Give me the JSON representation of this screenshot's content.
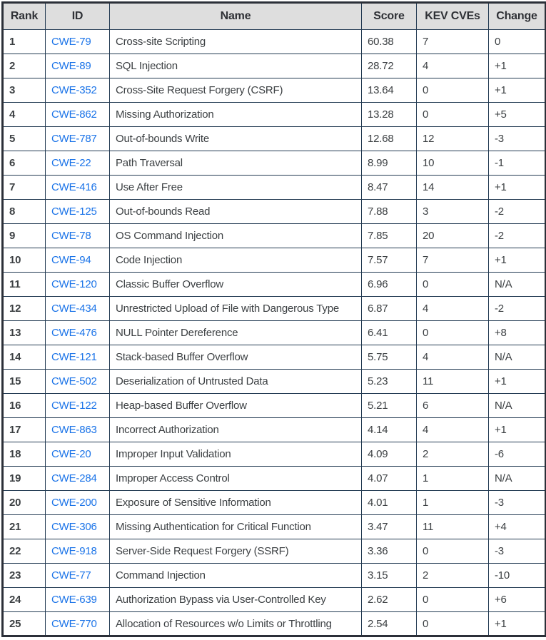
{
  "colors": {
    "link_blue": "#1a73e8",
    "header_background": "#dedede",
    "border_inner": "#223a52",
    "border_outer": "#2b2f38",
    "body_text": "#3c4043"
  },
  "chart_data": {
    "type": "table",
    "title": "",
    "columns": [
      "Rank",
      "ID",
      "Name",
      "Score",
      "KEV CVEs",
      "Change"
    ],
    "rows": [
      [
        "1",
        "CWE-79",
        "Cross-site Scripting",
        "60.38",
        "7",
        "0"
      ],
      [
        "2",
        "CWE-89",
        "SQL Injection",
        "28.72",
        "4",
        "+1"
      ],
      [
        "3",
        "CWE-352",
        "Cross-Site Request Forgery (CSRF)",
        "13.64",
        "0",
        "+1"
      ],
      [
        "4",
        "CWE-862",
        "Missing Authorization",
        "13.28",
        "0",
        "+5"
      ],
      [
        "5",
        "CWE-787",
        "Out-of-bounds Write",
        "12.68",
        "12",
        "-3"
      ],
      [
        "6",
        "CWE-22",
        "Path Traversal",
        "8.99",
        "10",
        "-1"
      ],
      [
        "7",
        "CWE-416",
        "Use After Free",
        "8.47",
        "14",
        "+1"
      ],
      [
        "8",
        "CWE-125",
        "Out-of-bounds Read",
        "7.88",
        "3",
        "-2"
      ],
      [
        "9",
        "CWE-78",
        "OS Command Injection",
        "7.85",
        "20",
        "-2"
      ],
      [
        "10",
        "CWE-94",
        "Code Injection",
        "7.57",
        "7",
        "+1"
      ],
      [
        "11",
        "CWE-120",
        "Classic Buffer Overflow",
        "6.96",
        "0",
        "N/A"
      ],
      [
        "12",
        "CWE-434",
        "Unrestricted Upload of File with Dangerous Type",
        "6.87",
        "4",
        "-2"
      ],
      [
        "13",
        "CWE-476",
        "NULL Pointer Dereference",
        "6.41",
        "0",
        "+8"
      ],
      [
        "14",
        "CWE-121",
        "Stack-based Buffer Overflow",
        "5.75",
        "4",
        "N/A"
      ],
      [
        "15",
        "CWE-502",
        "Deserialization of Untrusted Data",
        "5.23",
        "11",
        "+1"
      ],
      [
        "16",
        "CWE-122",
        "Heap-based Buffer Overflow",
        "5.21",
        "6",
        "N/A"
      ],
      [
        "17",
        "CWE-863",
        "Incorrect Authorization",
        "4.14",
        "4",
        "+1"
      ],
      [
        "18",
        "CWE-20",
        "Improper Input Validation",
        "4.09",
        "2",
        "-6"
      ],
      [
        "19",
        "CWE-284",
        "Improper Access Control",
        "4.07",
        "1",
        "N/A"
      ],
      [
        "20",
        "CWE-200",
        "Exposure of Sensitive Information",
        "4.01",
        "1",
        "-3"
      ],
      [
        "21",
        "CWE-306",
        "Missing Authentication for Critical Function",
        "3.47",
        "11",
        "+4"
      ],
      [
        "22",
        "CWE-918",
        "Server-Side Request Forgery (SSRF)",
        "3.36",
        "0",
        "-3"
      ],
      [
        "23",
        "CWE-77",
        "Command Injection",
        "3.15",
        "2",
        "-10"
      ],
      [
        "24",
        "CWE-639",
        "Authorization Bypass via User-Controlled Key",
        "2.62",
        "0",
        "+6"
      ],
      [
        "25",
        "CWE-770",
        "Allocation of Resources w/o Limits or Throttling",
        "2.54",
        "0",
        "+1"
      ]
    ]
  }
}
